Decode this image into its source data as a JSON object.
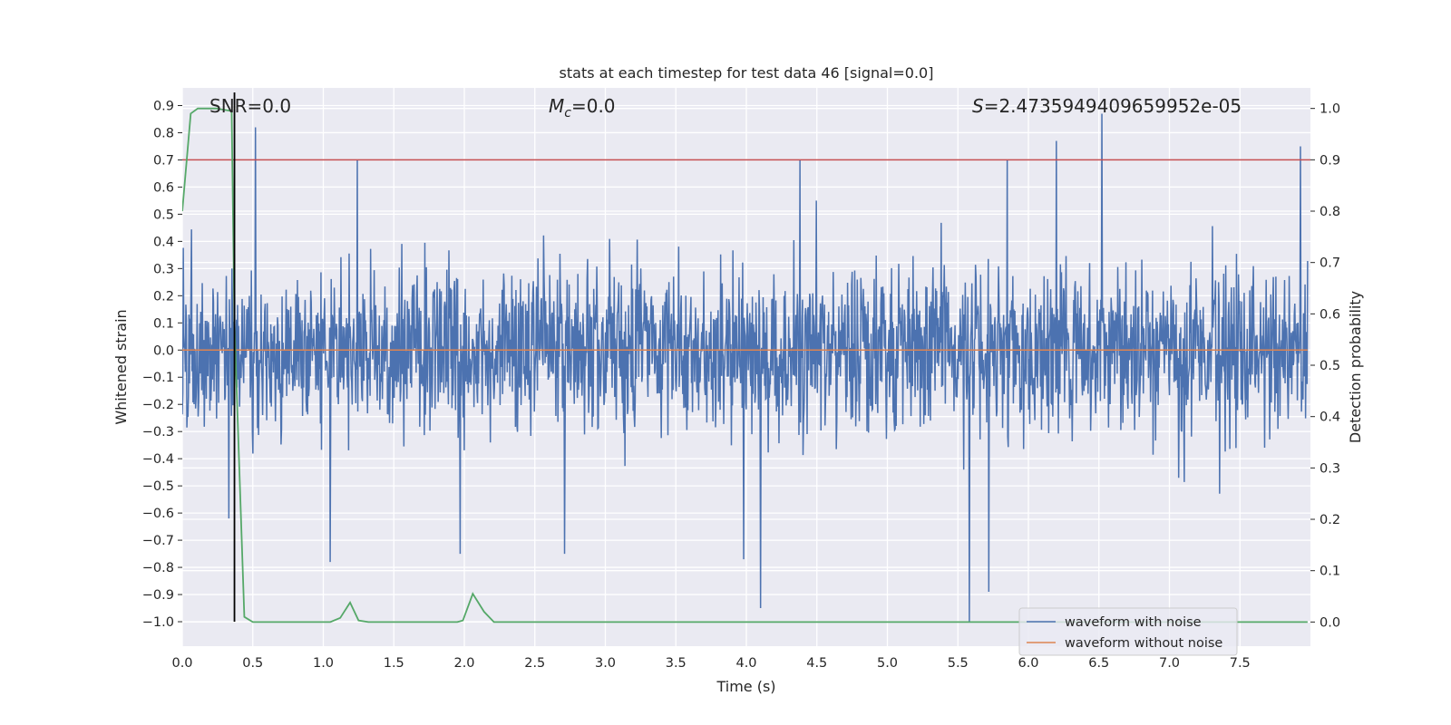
{
  "chart_data": {
    "type": "line",
    "title": "stats at each timestep for test data 46 [signal=0.0]",
    "xlabel": "Time (s)",
    "ylabel": "Whitened strain",
    "ylabel_right": "Detection probability",
    "xlim": [
      0.0,
      8.0
    ],
    "ylim": [
      -1.09,
      0.965
    ],
    "ylim_right": [
      -0.047,
      1.04
    ],
    "xticks": [
      "0.0",
      "0.5",
      "1.0",
      "1.5",
      "2.0",
      "2.5",
      "3.0",
      "3.5",
      "4.0",
      "4.5",
      "5.0",
      "5.5",
      "6.0",
      "6.5",
      "7.0",
      "7.5"
    ],
    "xtick_values": [
      0.0,
      0.5,
      1.0,
      1.5,
      2.0,
      2.5,
      3.0,
      3.5,
      4.0,
      4.5,
      5.0,
      5.5,
      6.0,
      6.5,
      7.0,
      7.5
    ],
    "yticks": [
      "−1.0",
      "−0.9",
      "−0.8",
      "−0.7",
      "−0.6",
      "−0.5",
      "−0.4",
      "−0.3",
      "−0.2",
      "−0.1",
      "0.0",
      "0.1",
      "0.2",
      "0.3",
      "0.4",
      "0.5",
      "0.6",
      "0.7",
      "0.8",
      "0.9"
    ],
    "ytick_values": [
      -1.0,
      -0.9,
      -0.8,
      -0.7,
      -0.6,
      -0.5,
      -0.4,
      -0.3,
      -0.2,
      -0.1,
      0.0,
      0.1,
      0.2,
      0.3,
      0.4,
      0.5,
      0.6,
      0.7,
      0.8,
      0.9
    ],
    "yticks_right": [
      "0.0",
      "0.1",
      "0.2",
      "0.3",
      "0.4",
      "0.5",
      "0.6",
      "0.7",
      "0.8",
      "0.9",
      "1.0"
    ],
    "ytick_right_values": [
      0.0,
      0.1,
      0.2,
      0.3,
      0.4,
      0.5,
      0.6,
      0.7,
      0.8,
      0.9,
      1.0
    ],
    "annotations": {
      "snr": "SNR=0.0",
      "mc_symbol": "M",
      "mc_subscript": "c",
      "mc_value": "=0.0",
      "s_symbol": "S",
      "s_value": "=2.4735949409659952e-05"
    },
    "threshold_prob": 0.9,
    "marker_time": 0.37,
    "legend": {
      "position": "lower-right",
      "entries": [
        "waveform with noise",
        "waveform without noise"
      ]
    },
    "series": [
      {
        "name": "waveform with noise",
        "axis": "left",
        "color": "#4c72b0",
        "description": "dense noise, roughly ±0.3 with spikes",
        "noise_sigma": 0.15,
        "x_range": [
          0.0,
          7.98
        ],
        "n_points": 2200,
        "peaks": [
          {
            "x": 0.52,
            "y": 0.82
          },
          {
            "x": 1.24,
            "y": 0.7
          },
          {
            "x": 4.38,
            "y": 0.7
          },
          {
            "x": 5.85,
            "y": 0.7
          },
          {
            "x": 6.2,
            "y": 0.77
          },
          {
            "x": 6.52,
            "y": 0.87
          },
          {
            "x": 7.93,
            "y": 0.75
          },
          {
            "x": 0.33,
            "y": -0.62
          },
          {
            "x": 1.05,
            "y": -0.78
          },
          {
            "x": 1.97,
            "y": -0.75
          },
          {
            "x": 2.71,
            "y": -0.75
          },
          {
            "x": 3.98,
            "y": -0.77
          },
          {
            "x": 4.1,
            "y": -0.95
          },
          {
            "x": 5.58,
            "y": -1.0
          },
          {
            "x": 5.72,
            "y": -0.89
          }
        ]
      },
      {
        "name": "waveform without noise",
        "axis": "left",
        "color": "#dd8452",
        "x": [
          0.0,
          7.98
        ],
        "y": [
          0.0,
          0.0
        ]
      },
      {
        "name": "Detection probability",
        "axis": "right",
        "color": "#55a868",
        "x": [
          0.0,
          0.06,
          0.11,
          0.24,
          0.35,
          0.37,
          0.44,
          0.5,
          1.05,
          1.12,
          1.19,
          1.25,
          1.32,
          1.95,
          1.99,
          2.06,
          2.14,
          2.21,
          7.98
        ],
        "y": [
          0.8,
          0.99,
          1.0,
          1.0,
          0.995,
          0.58,
          0.01,
          0.0,
          0.0,
          0.008,
          0.038,
          0.003,
          0.0,
          0.0,
          0.003,
          0.055,
          0.02,
          0.0,
          0.0
        ]
      }
    ]
  }
}
